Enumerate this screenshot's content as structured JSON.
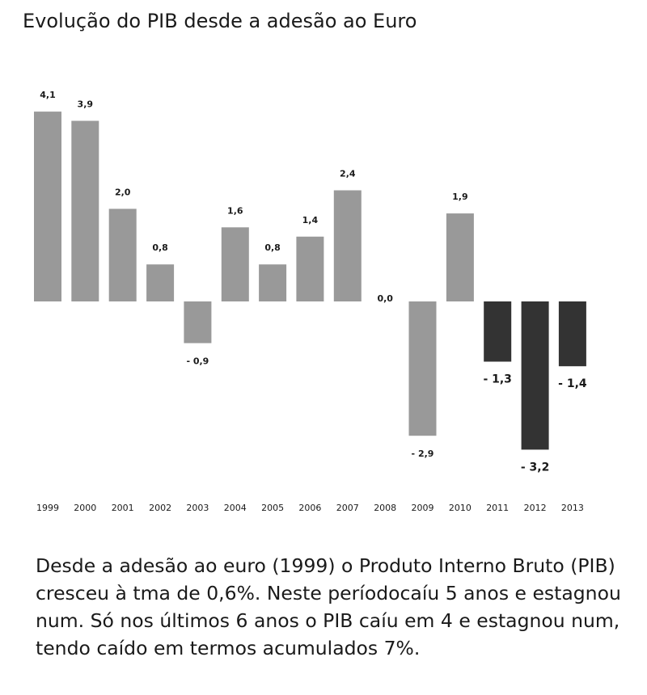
{
  "title": "Evolução do PIB desde a adesão ao Euro",
  "caption": "Desde a adesão ao euro (1999) o Produto Interno Bruto (PIB) cresceu à tma de 0,6%. Neste períodocaíu 5 anos e estagnou num. Só nos últimos 6 anos o PIB caíu em 4 e estagnou num, tendo caído em termos acumulados 7%.",
  "colors": {
    "bar_light": "#999999",
    "bar_dark": "#333333",
    "text": "#1a1a1a"
  },
  "chart_data": {
    "type": "bar",
    "title": "Evolução do PIB desde a adesão ao Euro",
    "categories": [
      "1999",
      "2000",
      "2001",
      "2002",
      "2003",
      "2004",
      "2005",
      "2006",
      "2007",
      "2008",
      "2009",
      "2010",
      "2011",
      "2012",
      "2013"
    ],
    "values": [
      4.1,
      3.9,
      2.0,
      0.8,
      -0.9,
      1.6,
      0.8,
      1.4,
      2.4,
      0.0,
      -2.9,
      1.9,
      -1.3,
      -3.2,
      -1.4
    ],
    "labels": [
      "4,1",
      "3,9",
      "2,0",
      "0,8",
      "- 0,9",
      "1,6",
      "0,8",
      "1,4",
      "2,4",
      "0,0",
      "- 2,9",
      "1,9",
      "- 1,3",
      "- 3,2",
      "- 1,4"
    ],
    "highlight": [
      false,
      false,
      false,
      false,
      false,
      false,
      false,
      false,
      false,
      false,
      false,
      false,
      true,
      true,
      true
    ],
    "xlabel": "",
    "ylabel": "",
    "ylim": [
      -3.2,
      4.1
    ],
    "grid": false,
    "legend": "none"
  }
}
